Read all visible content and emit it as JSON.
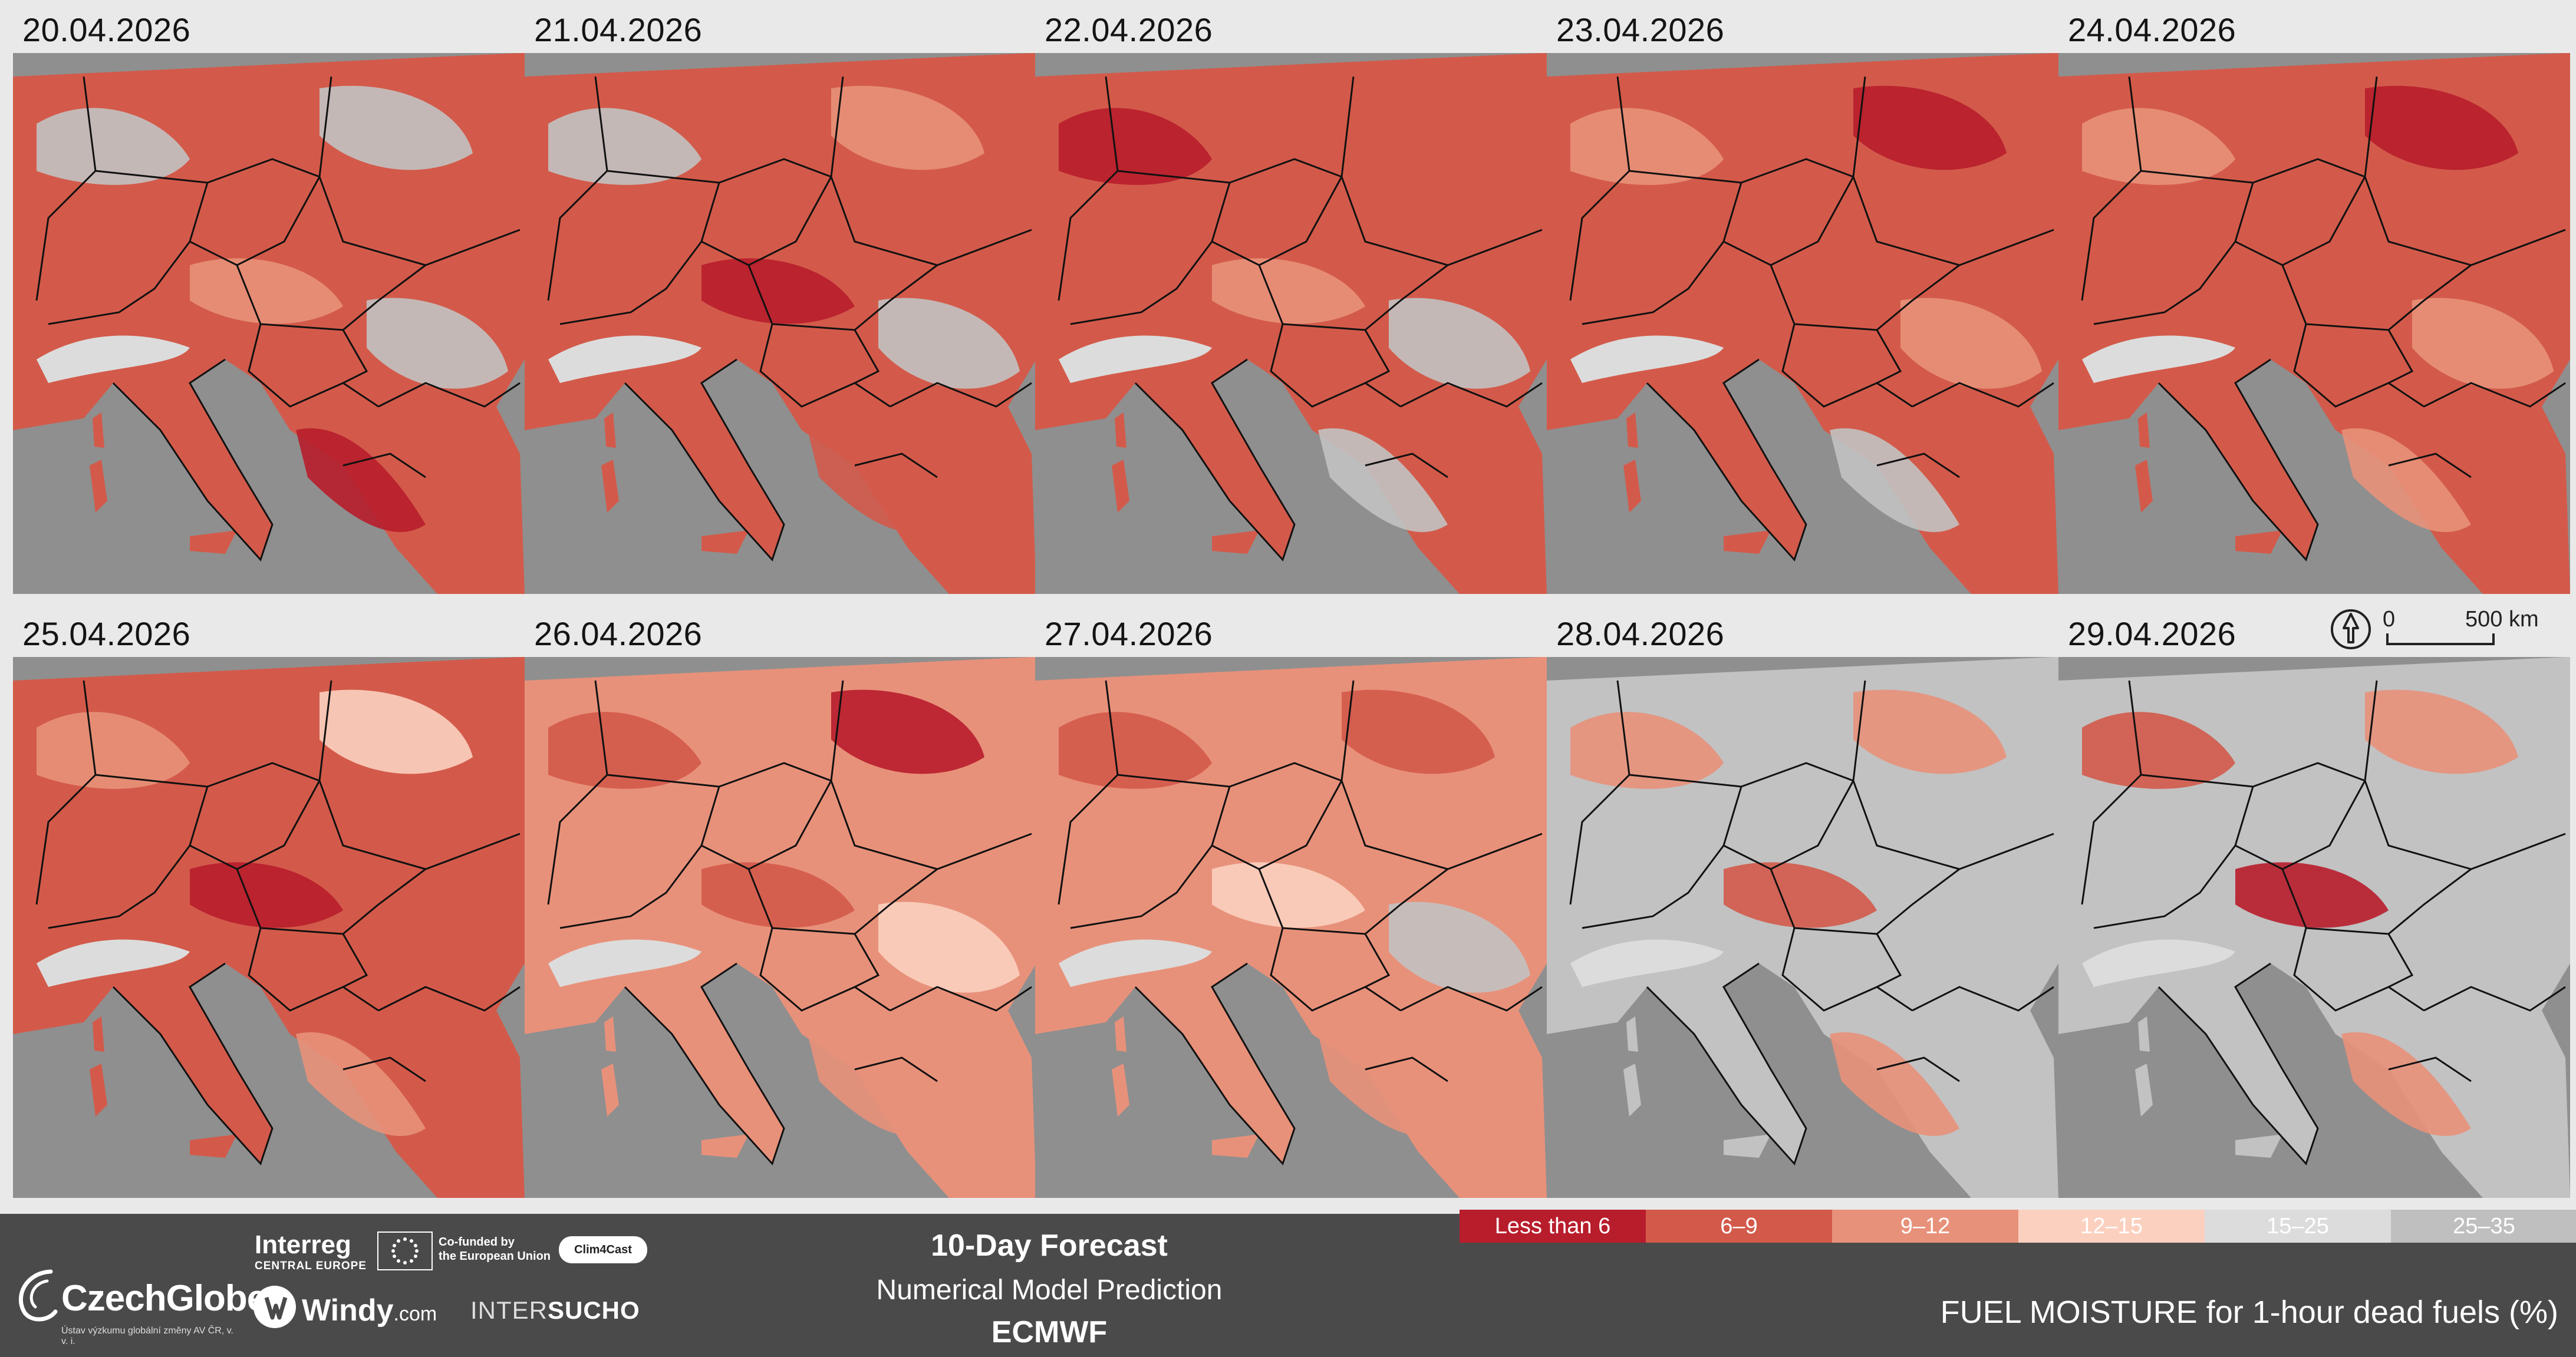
{
  "panels": [
    {
      "date": "20.04.2026",
      "dominant": "#d35a4a",
      "patches": [
        "#c2c2c2",
        "#c2c2c2",
        "#e8917a",
        "#c2c2c2",
        "#b81d2c"
      ]
    },
    {
      "date": "21.04.2026",
      "dominant": "#d35a4a",
      "patches": [
        "#c2c2c2",
        "#e8917a",
        "#b81d2c",
        "#c2c2c2",
        "#d35a4a"
      ]
    },
    {
      "date": "22.04.2026",
      "dominant": "#d35a4a",
      "patches": [
        "#b81d2c",
        "#d35a4a",
        "#e8917a",
        "#c2c2c2",
        "#c2c2c2"
      ]
    },
    {
      "date": "23.04.2026",
      "dominant": "#d35a4a",
      "patches": [
        "#e8917a",
        "#b81d2c",
        "#d35a4a",
        "#e8917a",
        "#c2c2c2"
      ]
    },
    {
      "date": "24.04.2026",
      "dominant": "#d35a4a",
      "patches": [
        "#e8917a",
        "#b81d2c",
        "#d35a4a",
        "#e8917a",
        "#e8917a"
      ]
    },
    {
      "date": "25.04.2026",
      "dominant": "#d35a4a",
      "patches": [
        "#e8917a",
        "#fbd0bf",
        "#b81d2c",
        "#d35a4a",
        "#e8917a"
      ]
    },
    {
      "date": "26.04.2026",
      "dominant": "#e8917a",
      "patches": [
        "#d35a4a",
        "#b81d2c",
        "#d35a4a",
        "#fbd0bf",
        "#e8917a"
      ]
    },
    {
      "date": "27.04.2026",
      "dominant": "#e8917a",
      "patches": [
        "#d35a4a",
        "#d35a4a",
        "#fbd0bf",
        "#c2c2c2",
        "#e8917a"
      ]
    },
    {
      "date": "28.04.2026",
      "dominant": "#c2c2c2",
      "patches": [
        "#e8917a",
        "#e8917a",
        "#d35a4a",
        "#c2c2c2",
        "#e8917a"
      ]
    },
    {
      "date": "29.04.2026",
      "dominant": "#c2c2c2",
      "patches": [
        "#d35a4a",
        "#e8917a",
        "#b81d2c",
        "#c2c2c2",
        "#e8917a"
      ]
    }
  ],
  "scale": {
    "zero": "0",
    "distance": "500 km",
    "north_icon": "north-arrow-icon"
  },
  "footer": {
    "title": "10-Day Forecast",
    "subtitle": "Numerical Model Prediction",
    "model": "ECMWF",
    "variable": "FUEL MOISTURE for 1-hour dead fuels (%)"
  },
  "logos": {
    "czechglobe": "CzechGlobe",
    "czechglobe_sub": "Ústav výzkumu globální změny AV ČR, v. v. i.",
    "interreg": "Interreg",
    "interreg_sub": "CENTRAL EUROPE",
    "eu_line1": "Co-funded by",
    "eu_line2": "the European Union",
    "clim4cast": "Clim4Cast",
    "windy": "Windy",
    "windy_tld": ".com",
    "intersucho_a": "INTER",
    "intersucho_b": "SUCHO"
  },
  "legend": [
    {
      "label": "Less than 6",
      "color": "#b81d2c"
    },
    {
      "label": "6–9",
      "color": "#d35a4a"
    },
    {
      "label": "9–12",
      "color": "#e8917a"
    },
    {
      "label": "12–15",
      "color": "#fbd0bf"
    },
    {
      "label": "15–25",
      "color": "#dcdcdc"
    },
    {
      "label": "25–35",
      "color": "#bfbfbf"
    }
  ],
  "colors": {
    "sea": "#8f8f8f",
    "border": "#111111"
  }
}
